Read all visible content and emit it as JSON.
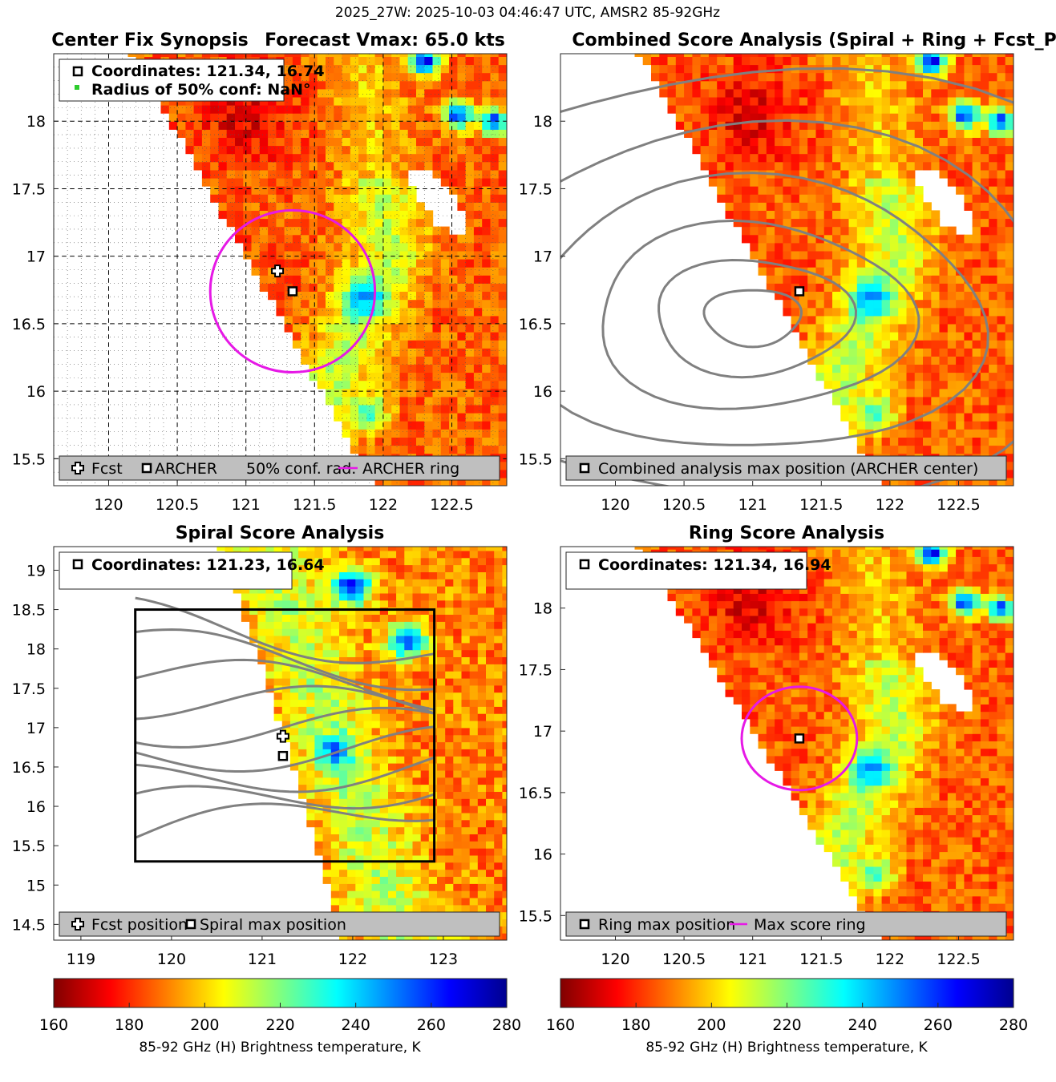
{
  "suptitle": "2025_27W: 2025-10-03 04:46:47 UTC, AMSR2 85-92GHz",
  "panels": [
    {
      "id": "synopsis",
      "title_left": "Center Fix Synopsis",
      "title_right": "Forecast Vmax: 65.0 kts",
      "legend_top": [
        "Coordinates: 121.34, 16.74",
        "Radius of 50% conf: NaN°"
      ],
      "legend_bottom": [
        "Fcst",
        "ARCHER",
        "50% conf. rad.",
        "ARCHER ring"
      ]
    },
    {
      "id": "combined",
      "title": "Combined Score Analysis (Spiral + Ring + Fcst_Pe",
      "legend_bottom": [
        "Combined analysis max position (ARCHER center)"
      ]
    },
    {
      "id": "spiral",
      "title": "Spiral Score Analysis",
      "legend_top": [
        "Coordinates: 121.23, 16.64"
      ],
      "legend_bottom": [
        "Fcst position",
        "Spiral max position"
      ]
    },
    {
      "id": "ring",
      "title": "Ring Score Analysis",
      "legend_top": [
        "Coordinates: 121.34, 16.94"
      ],
      "legend_bottom": [
        "Ring max position",
        "Max score ring"
      ]
    }
  ],
  "colorbars": [
    {
      "ticks": [
        "160",
        "180",
        "200",
        "220",
        "240",
        "260",
        "280"
      ],
      "label": "85-92 GHz (H) Brightness temperature, K"
    },
    {
      "ticks": [
        "160",
        "180",
        "200",
        "220",
        "240",
        "260",
        "280"
      ],
      "label": "85-92 GHz (H) Brightness temperature, K"
    }
  ],
  "chart_data": [
    {
      "type": "heatmap",
      "title": "Center Fix Synopsis     Forecast Vmax: 65.0 kts",
      "xlim": [
        119.6,
        122.9
      ],
      "ylim": [
        15.3,
        18.5
      ],
      "xticks": [
        120,
        120.5,
        121,
        121.5,
        122,
        122.5
      ],
      "yticks": [
        15.5,
        16,
        16.5,
        17,
        17.5,
        18
      ],
      "markers": [
        {
          "name": "Fcst",
          "lon": 121.23,
          "lat": 16.89
        },
        {
          "name": "ARCHER",
          "lon": 121.34,
          "lat": 16.74
        }
      ],
      "ring": {
        "center": [
          121.34,
          16.74
        ],
        "radius_deg": 0.6,
        "color": "#e619e6"
      },
      "colorscale": "jet",
      "clim": [
        160,
        280
      ],
      "grid": true
    },
    {
      "type": "heatmap",
      "title": "Combined Score Analysis (Spiral + Ring + Fcst_Pe",
      "xlim": [
        119.6,
        122.9
      ],
      "ylim": [
        15.3,
        18.5
      ],
      "xticks": [
        120,
        120.5,
        121,
        121.5,
        122,
        122.5
      ],
      "yticks": [
        15.5,
        16,
        16.5,
        17,
        17.5,
        18
      ],
      "markers": [
        {
          "name": "Combined analysis max position (ARCHER center)",
          "lon": 121.34,
          "lat": 16.74
        }
      ],
      "colorscale": "jet",
      "clim": [
        160,
        280
      ]
    },
    {
      "type": "heatmap",
      "title": "Spiral Score Analysis",
      "xlim": [
        118.7,
        123.7
      ],
      "ylim": [
        14.3,
        19.3
      ],
      "xticks": [
        119,
        120,
        121,
        122,
        123
      ],
      "yticks": [
        14.5,
        15,
        15.5,
        16,
        16.5,
        17,
        17.5,
        18,
        18.5,
        19
      ],
      "markers": [
        {
          "name": "Fcst position",
          "lon": 121.23,
          "lat": 16.89
        },
        {
          "name": "Spiral max position",
          "lon": 121.23,
          "lat": 16.64
        }
      ],
      "box": {
        "lon": [
          119.6,
          122.9
        ],
        "lat": [
          15.3,
          18.5
        ]
      },
      "colorscale": "jet",
      "clim": [
        160,
        280
      ]
    },
    {
      "type": "heatmap",
      "title": "Ring Score Analysis",
      "xlim": [
        119.6,
        122.9
      ],
      "ylim": [
        15.3,
        18.5
      ],
      "xticks": [
        120,
        120.5,
        121,
        121.5,
        122,
        122.5
      ],
      "yticks": [
        15.5,
        16,
        16.5,
        17,
        17.5,
        18
      ],
      "markers": [
        {
          "name": "Ring max position",
          "lon": 121.34,
          "lat": 16.94
        }
      ],
      "ring": {
        "center": [
          121.34,
          16.94
        ],
        "radius_deg": 0.42,
        "color": "#e619e6"
      },
      "colorscale": "jet",
      "clim": [
        160,
        280
      ]
    }
  ]
}
